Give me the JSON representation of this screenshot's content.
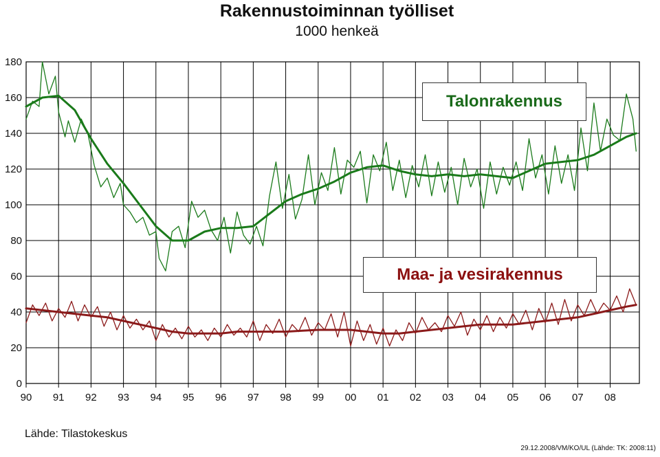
{
  "chart_data": {
    "type": "line",
    "title": "Rakennustoiminnan työlliset",
    "subtitle": "1000 henkeä",
    "xlabel": "",
    "ylabel": "",
    "ylim": [
      0,
      180
    ],
    "yticks": [
      0,
      20,
      40,
      60,
      80,
      100,
      120,
      140,
      160,
      180
    ],
    "xlim": [
      1990,
      2008.9
    ],
    "xtick_labels": [
      "90",
      "91",
      "92",
      "93",
      "94",
      "95",
      "96",
      "97",
      "98",
      "99",
      "00",
      "01",
      "02",
      "03",
      "04",
      "05",
      "06",
      "07",
      "08"
    ],
    "grid": true,
    "series": [
      {
        "name": "Talonrakennus",
        "color": "#1a7a1a",
        "raw": {
          "x": [
            1990.0,
            1990.2,
            1990.4,
            1990.5,
            1990.7,
            1990.9,
            1991.0,
            1991.2,
            1991.3,
            1991.5,
            1991.7,
            1991.9,
            1992.1,
            1992.3,
            1992.5,
            1992.7,
            1992.9,
            1993.0,
            1993.2,
            1993.4,
            1993.6,
            1993.8,
            1994.0,
            1994.1,
            1994.3,
            1994.5,
            1994.7,
            1994.9,
            1995.1,
            1995.3,
            1995.5,
            1995.7,
            1995.9,
            1996.1,
            1996.3,
            1996.5,
            1996.7,
            1996.9,
            1997.1,
            1997.3,
            1997.5,
            1997.7,
            1997.9,
            1998.1,
            1998.3,
            1998.5,
            1998.7,
            1998.9,
            1999.1,
            1999.3,
            1999.5,
            1999.7,
            1999.9,
            2000.1,
            2000.3,
            2000.5,
            2000.7,
            2000.9,
            2001.1,
            2001.3,
            2001.5,
            2001.7,
            2001.9,
            2002.1,
            2002.3,
            2002.5,
            2002.7,
            2002.9,
            2003.1,
            2003.3,
            2003.5,
            2003.7,
            2003.9,
            2004.1,
            2004.3,
            2004.5,
            2004.7,
            2004.9,
            2005.1,
            2005.3,
            2005.5,
            2005.7,
            2005.9,
            2006.1,
            2006.3,
            2006.5,
            2006.7,
            2006.9,
            2007.1,
            2007.3,
            2007.5,
            2007.7,
            2007.9,
            2008.1,
            2008.3,
            2008.5,
            2008.7,
            2008.8
          ],
          "values": [
            148,
            158,
            155,
            180,
            162,
            172,
            152,
            138,
            147,
            135,
            148,
            140,
            122,
            110,
            115,
            104,
            112,
            100,
            96,
            90,
            93,
            83,
            85,
            70,
            63,
            85,
            88,
            76,
            102,
            93,
            97,
            86,
            80,
            93,
            73,
            96,
            83,
            78,
            88,
            77,
            105,
            124,
            98,
            117,
            92,
            103,
            128,
            100,
            118,
            108,
            132,
            106,
            125,
            121,
            130,
            101,
            128,
            119,
            135,
            108,
            125,
            104,
            122,
            110,
            128,
            105,
            124,
            107,
            121,
            100,
            126,
            110,
            120,
            98,
            124,
            106,
            121,
            111,
            124,
            108,
            137,
            115,
            128,
            106,
            133,
            112,
            128,
            108,
            143,
            119,
            157,
            130,
            148,
            139,
            136,
            162,
            148,
            130
          ]
        },
        "trend": {
          "x": [
            1990.0,
            1990.5,
            1991.0,
            1991.5,
            1992.0,
            1992.5,
            1993.0,
            1993.5,
            1994.0,
            1994.5,
            1995.0,
            1995.5,
            1996.0,
            1996.5,
            1997.0,
            1997.5,
            1998.0,
            1998.5,
            1999.0,
            1999.5,
            2000.0,
            2000.5,
            2001.0,
            2001.5,
            2002.0,
            2002.5,
            2003.0,
            2003.5,
            2004.0,
            2004.5,
            2005.0,
            2005.5,
            2006.0,
            2006.5,
            2007.0,
            2007.5,
            2008.0,
            2008.5,
            2008.8
          ],
          "values": [
            155,
            160,
            161,
            153,
            137,
            123,
            112,
            100,
            88,
            80,
            80,
            85,
            87,
            87,
            88,
            95,
            102,
            106,
            109,
            113,
            118,
            121,
            122,
            119,
            117,
            116,
            117,
            116,
            117,
            116,
            115,
            119,
            123,
            124,
            125,
            128,
            133,
            138,
            140
          ]
        }
      },
      {
        "name": "Maa- ja vesirakennus",
        "color": "#8b1a1a",
        "raw": {
          "x": [
            1990.0,
            1990.2,
            1990.4,
            1990.6,
            1990.8,
            1991.0,
            1991.2,
            1991.4,
            1991.6,
            1991.8,
            1992.0,
            1992.2,
            1992.4,
            1992.6,
            1992.8,
            1993.0,
            1993.2,
            1993.4,
            1993.6,
            1993.8,
            1994.0,
            1994.2,
            1994.4,
            1994.6,
            1994.8,
            1995.0,
            1995.2,
            1995.4,
            1995.6,
            1995.8,
            1996.0,
            1996.2,
            1996.4,
            1996.6,
            1996.8,
            1997.0,
            1997.2,
            1997.4,
            1997.6,
            1997.8,
            1998.0,
            1998.2,
            1998.4,
            1998.6,
            1998.8,
            1999.0,
            1999.2,
            1999.4,
            1999.6,
            1999.8,
            2000.0,
            2000.2,
            2000.4,
            2000.6,
            2000.8,
            2001.0,
            2001.2,
            2001.4,
            2001.6,
            2001.8,
            2002.0,
            2002.2,
            2002.4,
            2002.6,
            2002.8,
            2003.0,
            2003.2,
            2003.4,
            2003.6,
            2003.8,
            2004.0,
            2004.2,
            2004.4,
            2004.6,
            2004.8,
            2005.0,
            2005.2,
            2005.4,
            2005.6,
            2005.8,
            2006.0,
            2006.2,
            2006.4,
            2006.6,
            2006.8,
            2007.0,
            2007.2,
            2007.4,
            2007.6,
            2007.8,
            2008.0,
            2008.2,
            2008.4,
            2008.6,
            2008.8
          ],
          "values": [
            34,
            44,
            38,
            45,
            35,
            42,
            37,
            46,
            35,
            44,
            37,
            43,
            32,
            40,
            30,
            38,
            31,
            36,
            30,
            35,
            24,
            33,
            26,
            31,
            25,
            32,
            26,
            30,
            24,
            31,
            26,
            33,
            27,
            31,
            26,
            35,
            24,
            33,
            28,
            36,
            26,
            33,
            29,
            37,
            27,
            34,
            30,
            39,
            26,
            40,
            21,
            35,
            24,
            33,
            22,
            31,
            21,
            30,
            24,
            34,
            28,
            37,
            30,
            34,
            29,
            38,
            32,
            40,
            27,
            36,
            30,
            38,
            29,
            37,
            31,
            39,
            33,
            41,
            30,
            42,
            34,
            45,
            33,
            47,
            35,
            44,
            38,
            47,
            39,
            45,
            41,
            49,
            40,
            53,
            44
          ]
        },
        "trend": {
          "x": [
            1990.0,
            1990.5,
            1991.0,
            1991.5,
            1992.0,
            1992.5,
            1993.0,
            1993.5,
            1994.0,
            1994.5,
            1995.0,
            1995.5,
            1996.0,
            1996.5,
            1997.0,
            1997.5,
            1998.0,
            1998.5,
            1999.0,
            1999.5,
            2000.0,
            2000.5,
            2001.0,
            2001.5,
            2002.0,
            2002.5,
            2003.0,
            2003.5,
            2004.0,
            2004.5,
            2005.0,
            2005.5,
            2006.0,
            2006.5,
            2007.0,
            2007.5,
            2008.0,
            2008.5,
            2008.8
          ],
          "values": [
            42,
            41,
            40,
            39,
            38,
            37,
            35,
            33,
            31,
            29,
            28,
            28,
            28,
            29,
            29,
            29,
            29,
            29.5,
            30,
            30,
            30,
            29,
            28,
            28,
            29,
            30,
            31,
            32,
            33,
            33,
            33,
            34,
            35,
            36,
            37,
            39,
            41,
            43,
            44
          ]
        }
      }
    ]
  },
  "footer": {
    "source": "Lähde: Tilastokeskus",
    "credit": "29.12.2008/VM/KO/UL (Lähde: TK: 2008:11)"
  }
}
